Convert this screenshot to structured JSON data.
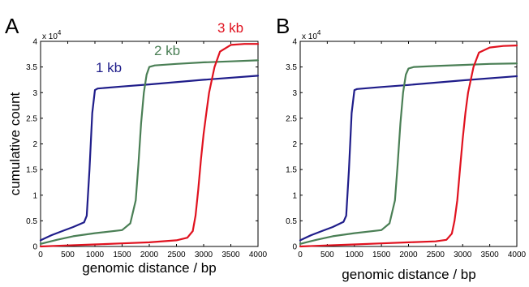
{
  "chart_data": [
    {
      "type": "line",
      "panel_label": "A",
      "xlabel": "genomic distance / bp",
      "ylabel": "cumulative count",
      "y_multiplier": "x 10",
      "y_multiplier_exp": "4",
      "xlim": [
        0,
        4000
      ],
      "ylim": [
        0,
        4
      ],
      "xticks": [
        "0",
        "500",
        "1000",
        "1500",
        "2000",
        "2500",
        "3000",
        "3500",
        "4000"
      ],
      "yticks": [
        "0",
        "0.5",
        "1",
        "1.5",
        "2",
        "2.5",
        "3",
        "3.5",
        "4"
      ],
      "series_labels_shown": true,
      "series": [
        {
          "name": "1 kb",
          "color": "#1f1d8a",
          "x": [
            0,
            200,
            400,
            600,
            800,
            850,
            900,
            950,
            1000,
            1050,
            1500,
            2000,
            3000,
            4000
          ],
          "y": [
            0.12,
            0.22,
            0.3,
            0.38,
            0.47,
            0.6,
            1.5,
            2.6,
            3.05,
            3.08,
            3.12,
            3.16,
            3.25,
            3.33
          ]
        },
        {
          "name": "2 kb",
          "color": "#4a7f55",
          "x": [
            0,
            300,
            600,
            1000,
            1500,
            1650,
            1750,
            1800,
            1850,
            1900,
            1950,
            2000,
            2100,
            2500,
            3000,
            3500,
            4000
          ],
          "y": [
            0.05,
            0.13,
            0.2,
            0.26,
            0.32,
            0.45,
            0.9,
            1.6,
            2.4,
            3.0,
            3.35,
            3.5,
            3.53,
            3.56,
            3.59,
            3.61,
            3.63
          ]
        },
        {
          "name": "3 kb",
          "color": "#e0121f",
          "x": [
            0,
            500,
            1000,
            1500,
            2000,
            2500,
            2700,
            2800,
            2850,
            2900,
            2950,
            3000,
            3050,
            3100,
            3200,
            3300,
            3500,
            3750,
            4000
          ],
          "y": [
            0,
            0.02,
            0.04,
            0.06,
            0.08,
            0.12,
            0.17,
            0.3,
            0.6,
            1.1,
            1.7,
            2.2,
            2.6,
            3.0,
            3.5,
            3.8,
            3.93,
            3.95,
            3.95
          ]
        }
      ]
    },
    {
      "type": "line",
      "panel_label": "B",
      "xlabel": "genomic distance / bp",
      "ylabel": "",
      "y_multiplier": "x 10",
      "y_multiplier_exp": "4",
      "xlim": [
        0,
        4000
      ],
      "ylim": [
        0,
        4
      ],
      "xticks": [
        "0",
        "500",
        "1000",
        "1500",
        "2000",
        "2500",
        "3000",
        "3500",
        "4000"
      ],
      "yticks": [
        "0",
        "0.5",
        "1",
        "1.5",
        "2",
        "2.5",
        "3",
        "3.5",
        "4"
      ],
      "series_labels_shown": false,
      "series": [
        {
          "color": "#1f1d8a",
          "x": [
            0,
            200,
            400,
            600,
            800,
            850,
            900,
            950,
            1000,
            1050,
            1500,
            2000,
            3000,
            4000
          ],
          "y": [
            0.12,
            0.22,
            0.3,
            0.38,
            0.48,
            0.6,
            1.5,
            2.6,
            3.05,
            3.07,
            3.11,
            3.15,
            3.24,
            3.32
          ]
        },
        {
          "color": "#4a7f55",
          "x": [
            0,
            300,
            600,
            1000,
            1500,
            1650,
            1750,
            1800,
            1850,
            1900,
            1950,
            2000,
            2100,
            2500,
            3000,
            3500,
            4000
          ],
          "y": [
            0.05,
            0.13,
            0.2,
            0.26,
            0.32,
            0.45,
            0.9,
            1.6,
            2.4,
            3.0,
            3.35,
            3.47,
            3.5,
            3.52,
            3.54,
            3.56,
            3.57
          ]
        },
        {
          "color": "#e0121f",
          "x": [
            0,
            500,
            1000,
            1500,
            2000,
            2500,
            2700,
            2800,
            2850,
            2900,
            2950,
            3000,
            3050,
            3100,
            3200,
            3300,
            3500,
            3750,
            4000
          ],
          "y": [
            0,
            0.02,
            0.04,
            0.06,
            0.08,
            0.1,
            0.13,
            0.25,
            0.5,
            0.9,
            1.5,
            2.1,
            2.6,
            3.0,
            3.5,
            3.78,
            3.88,
            3.91,
            3.92
          ]
        }
      ]
    }
  ]
}
